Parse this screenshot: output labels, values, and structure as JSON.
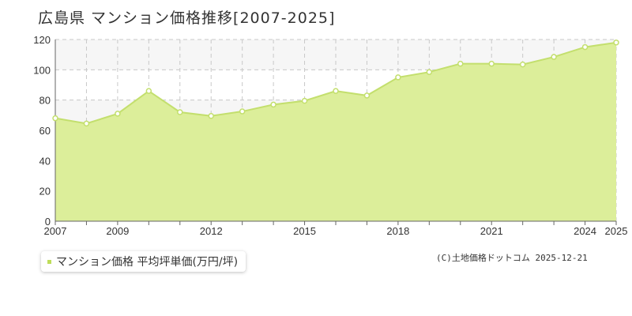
{
  "title": "広島県 マンション価格推移[2007-2025]",
  "legend": {
    "label": "マンション価格 平均坪単価(万円/坪)"
  },
  "credit": "(C)土地価格ドットコム 2025-12-21",
  "colors": {
    "fill": "#dcee9a",
    "line": "#c3df6d",
    "point_fill": "#ffffff",
    "grid": "#c8c8c8",
    "band": "#f6f6f6",
    "legend_marker": "#bedd59"
  },
  "chart_data": {
    "type": "area",
    "x": [
      2007,
      2008,
      2009,
      2010,
      2011,
      2012,
      2013,
      2014,
      2015,
      2016,
      2017,
      2018,
      2019,
      2020,
      2021,
      2022,
      2023,
      2024,
      2025
    ],
    "series": [
      {
        "name": "マンション価格 平均坪単価(万円/坪)",
        "values": [
          68,
          64.5,
          71,
          86,
          72,
          69.5,
          72.5,
          77,
          79.5,
          86,
          83,
          95,
          98.5,
          104,
          104,
          103.5,
          108.5,
          115,
          118
        ]
      }
    ],
    "x_tick_labels": [
      "2007",
      "2009",
      "2012",
      "2015",
      "2018",
      "2021",
      "2024",
      "2025"
    ],
    "y_ticks": [
      0,
      20,
      40,
      60,
      80,
      100,
      120
    ],
    "ylim": [
      0,
      120
    ],
    "xlim": [
      2007,
      2025
    ],
    "grid": true
  }
}
